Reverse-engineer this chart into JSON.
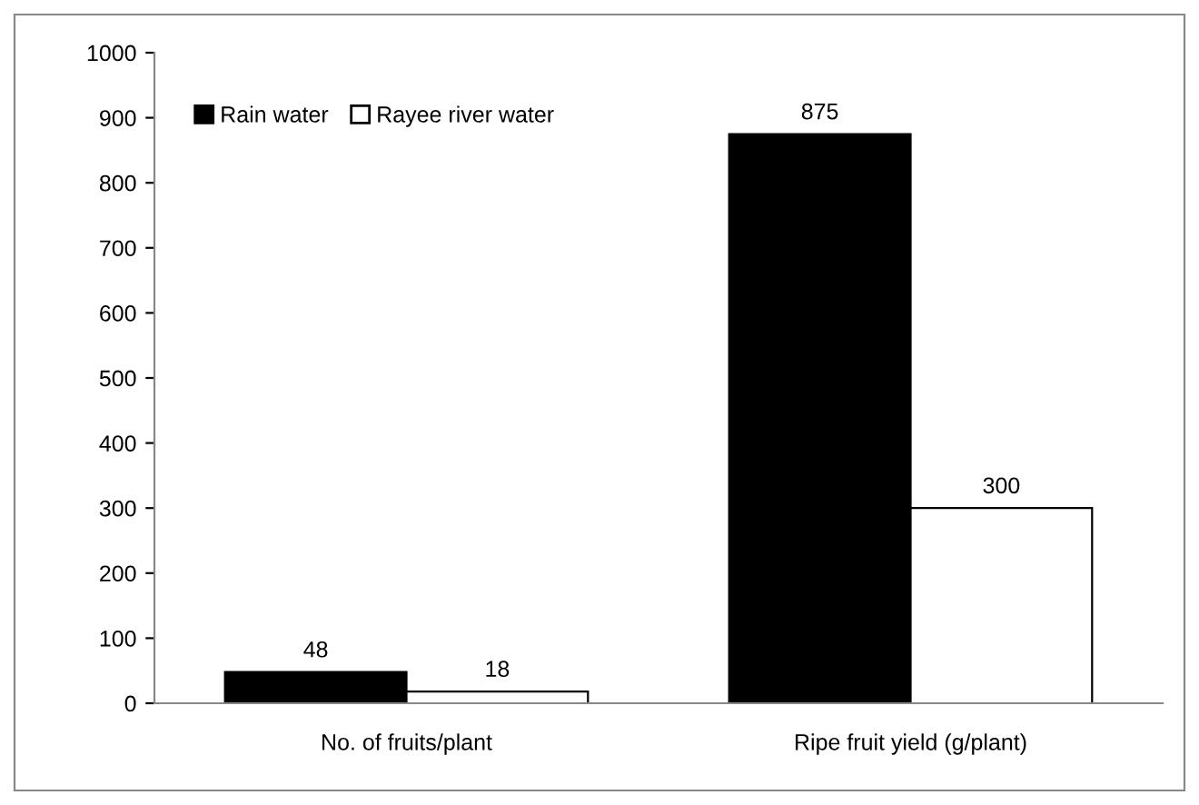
{
  "chart_data": {
    "type": "bar",
    "categories": [
      "No. of fruits/plant",
      "Ripe fruit yield (g/plant)"
    ],
    "series": [
      {
        "name": "Rain water",
        "color": "#000000",
        "values": [
          48,
          875
        ]
      },
      {
        "name": "Rayee river water",
        "color": "#ffffff",
        "values": [
          18,
          300
        ]
      }
    ],
    "ylim": [
      0,
      1000
    ],
    "yticks": [
      0,
      100,
      200,
      300,
      400,
      500,
      600,
      700,
      800,
      900,
      1000
    ],
    "grid": false,
    "legend": "top left",
    "data_labels": true
  }
}
